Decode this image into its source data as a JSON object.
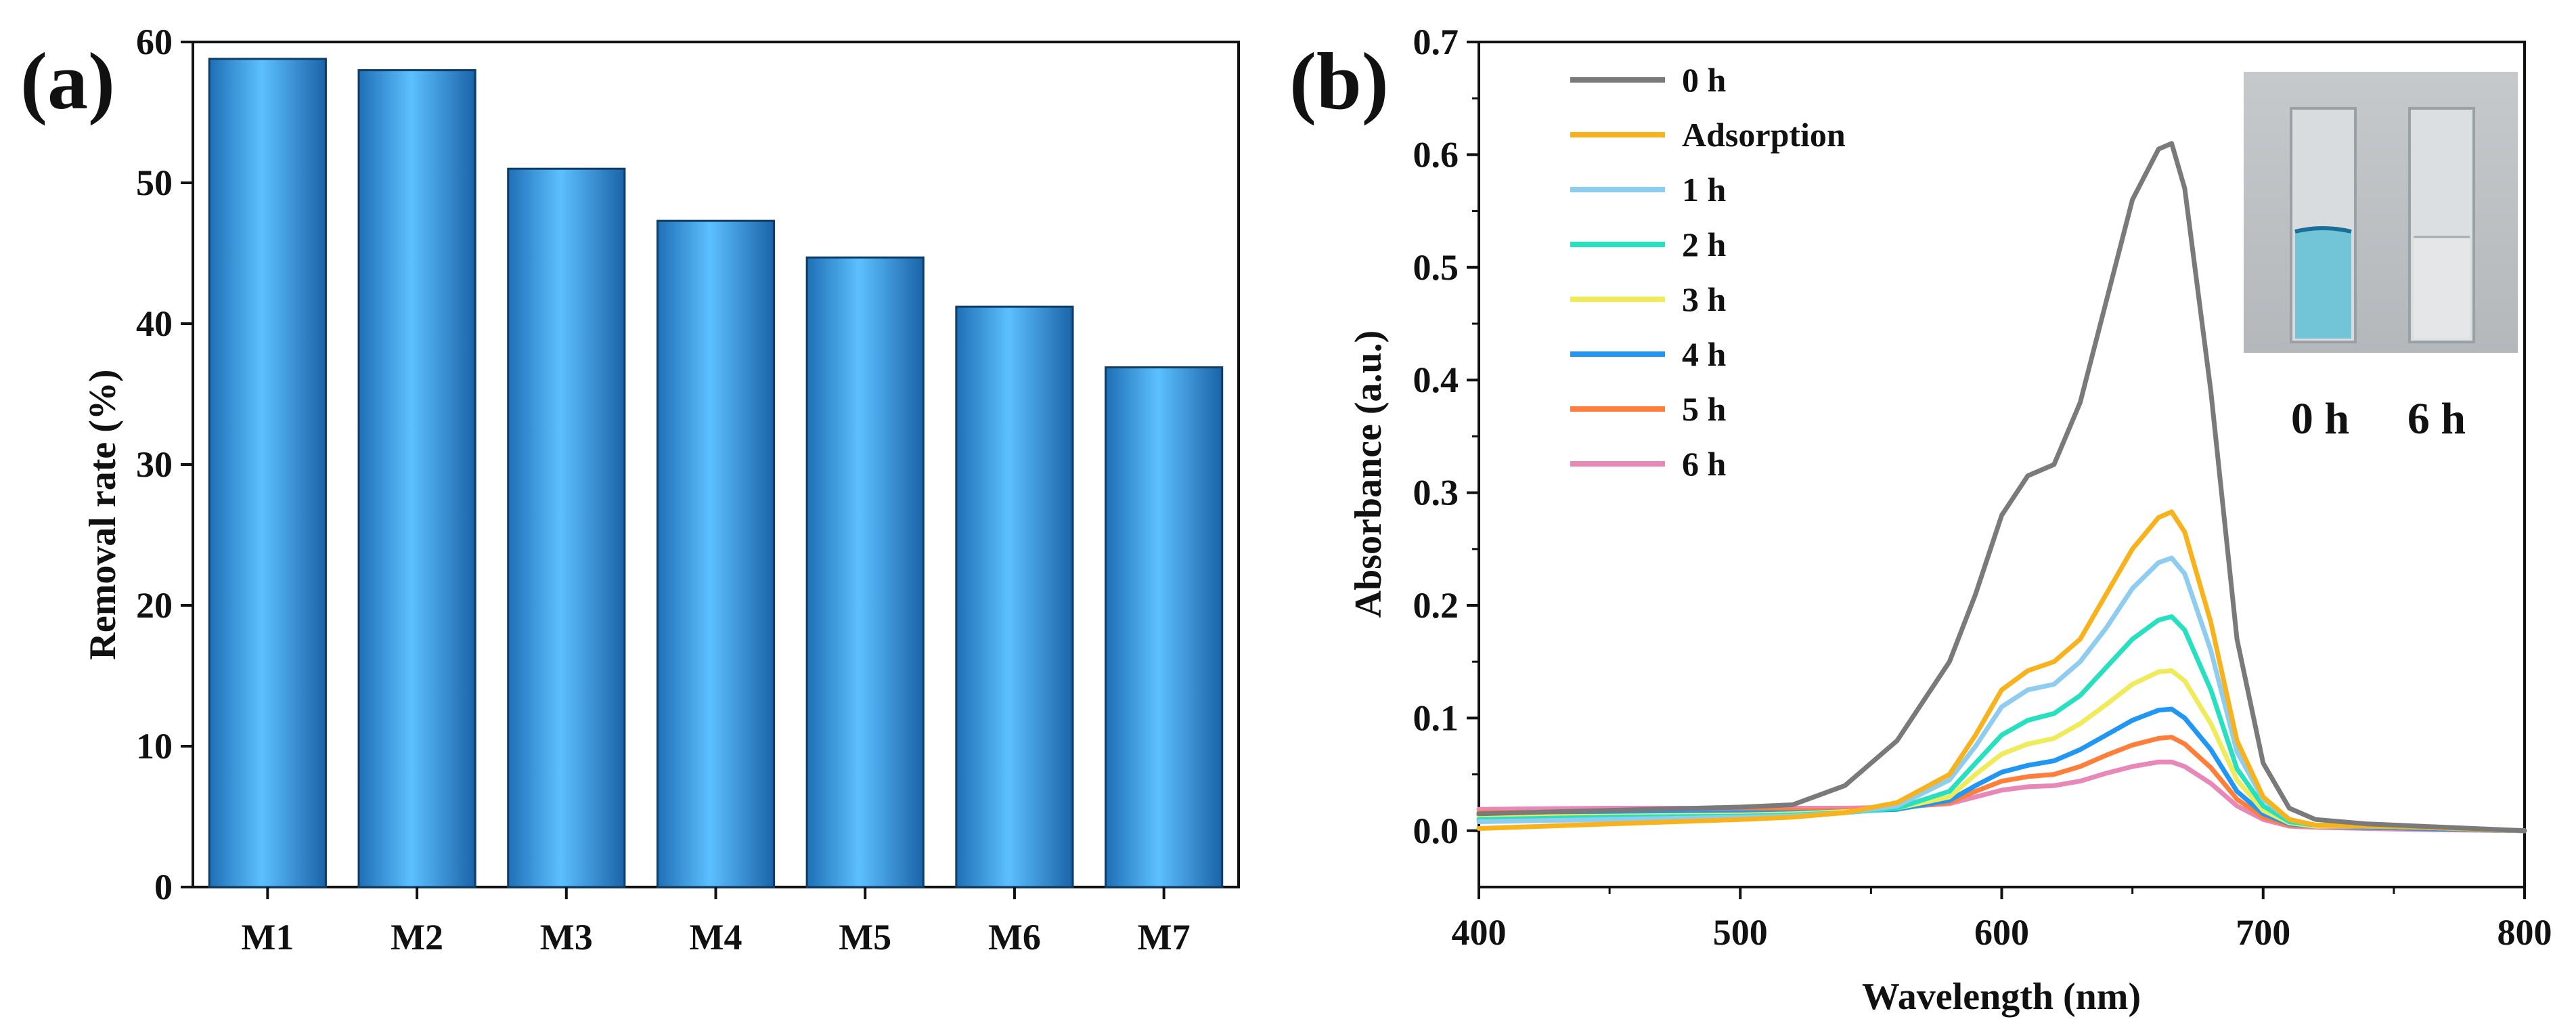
{
  "figure": {
    "panel_a_label": "(a)",
    "panel_b_label": "(b)",
    "inset": {
      "label_0": "0 h",
      "label_6": "6 h"
    }
  },
  "chart_data": [
    {
      "type": "bar",
      "panel": "(a)",
      "title": "",
      "xlabel": "",
      "ylabel": "Removal rate (%)",
      "categories": [
        "M1",
        "M2",
        "M3",
        "M4",
        "M5",
        "M6",
        "M7"
      ],
      "values": [
        58.8,
        58.0,
        51.0,
        47.3,
        44.7,
        41.2,
        36.9
      ],
      "ylim": [
        0,
        60
      ],
      "yticks": [
        0,
        10,
        20,
        30,
        40,
        50,
        60
      ],
      "bar_color": "#3aa6ef",
      "grid": false
    },
    {
      "type": "line",
      "panel": "(b)",
      "title": "",
      "xlabel": "Wavelength (nm)",
      "ylabel": "Absorbance (a.u.)",
      "xlim": [
        400,
        800
      ],
      "ylim": [
        -0.05,
        0.7
      ],
      "xticks": [
        400,
        500,
        600,
        700,
        800
      ],
      "yticks": [
        0.0,
        0.1,
        0.2,
        0.3,
        0.4,
        0.5,
        0.6,
        0.7
      ],
      "grid": false,
      "legend_position": "top-left",
      "x": [
        400,
        450,
        500,
        520,
        540,
        560,
        580,
        590,
        600,
        610,
        620,
        630,
        640,
        650,
        660,
        665,
        670,
        680,
        690,
        700,
        710,
        720,
        740,
        760,
        800
      ],
      "series": [
        {
          "name": "0 h",
          "color": "#7a7a7a",
          "values": [
            0.015,
            0.018,
            0.021,
            0.023,
            0.04,
            0.08,
            0.15,
            0.21,
            0.28,
            0.315,
            0.325,
            0.38,
            0.47,
            0.56,
            0.605,
            0.61,
            0.57,
            0.39,
            0.17,
            0.06,
            0.02,
            0.01,
            0.006,
            0.004,
            0.0
          ]
        },
        {
          "name": "Adsorption",
          "color": "#f7b21c",
          "values": [
            0.002,
            0.006,
            0.01,
            0.012,
            0.016,
            0.025,
            0.05,
            0.085,
            0.125,
            0.142,
            0.15,
            0.17,
            0.21,
            0.25,
            0.278,
            0.283,
            0.265,
            0.185,
            0.08,
            0.03,
            0.01,
            0.005,
            0.004,
            0.003,
            0.0
          ]
        },
        {
          "name": "1 h",
          "color": "#8ecdf0",
          "values": [
            0.008,
            0.01,
            0.012,
            0.013,
            0.016,
            0.022,
            0.045,
            0.075,
            0.11,
            0.125,
            0.13,
            0.15,
            0.18,
            0.215,
            0.238,
            0.242,
            0.228,
            0.16,
            0.07,
            0.028,
            0.01,
            0.005,
            0.004,
            0.003,
            0.0
          ]
        },
        {
          "name": "2 h",
          "color": "#27e0c0",
          "values": [
            0.01,
            0.012,
            0.013,
            0.014,
            0.016,
            0.02,
            0.035,
            0.06,
            0.085,
            0.098,
            0.104,
            0.12,
            0.145,
            0.17,
            0.187,
            0.19,
            0.178,
            0.125,
            0.055,
            0.022,
            0.008,
            0.005,
            0.004,
            0.003,
            0.0
          ]
        },
        {
          "name": "3 h",
          "color": "#f0eb5a",
          "values": [
            0.012,
            0.013,
            0.014,
            0.015,
            0.017,
            0.02,
            0.03,
            0.05,
            0.068,
            0.077,
            0.082,
            0.095,
            0.112,
            0.13,
            0.141,
            0.142,
            0.133,
            0.095,
            0.045,
            0.018,
            0.007,
            0.004,
            0.004,
            0.003,
            0.0
          ]
        },
        {
          "name": "4 h",
          "color": "#2196f3",
          "values": [
            0.014,
            0.015,
            0.016,
            0.016,
            0.017,
            0.019,
            0.027,
            0.04,
            0.052,
            0.058,
            0.062,
            0.072,
            0.085,
            0.098,
            0.107,
            0.108,
            0.1,
            0.072,
            0.035,
            0.015,
            0.006,
            0.004,
            0.003,
            0.002,
            0.0
          ]
        },
        {
          "name": "5 h",
          "color": "#ff7f3a",
          "values": [
            0.016,
            0.017,
            0.018,
            0.018,
            0.018,
            0.02,
            0.025,
            0.035,
            0.044,
            0.048,
            0.05,
            0.057,
            0.067,
            0.076,
            0.082,
            0.083,
            0.077,
            0.056,
            0.028,
            0.012,
            0.005,
            0.004,
            0.003,
            0.002,
            0.0
          ]
        },
        {
          "name": "6 h",
          "color": "#e888b8",
          "values": [
            0.019,
            0.02,
            0.02,
            0.02,
            0.02,
            0.021,
            0.024,
            0.03,
            0.036,
            0.039,
            0.04,
            0.044,
            0.051,
            0.057,
            0.061,
            0.061,
            0.057,
            0.042,
            0.022,
            0.01,
            0.004,
            0.003,
            0.002,
            0.001,
            0.0
          ]
        }
      ]
    }
  ]
}
